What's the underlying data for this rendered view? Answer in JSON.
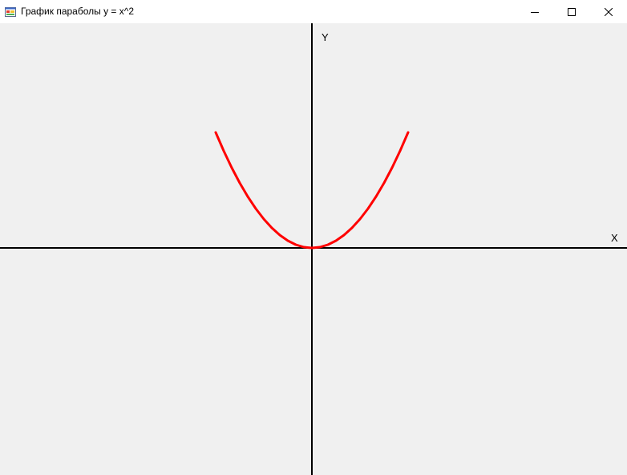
{
  "window": {
    "title": "График параболы y = x^2",
    "icon": "app-icon",
    "controls": {
      "minimize_icon": "minimize-icon",
      "maximize_icon": "maximize-icon",
      "close_icon": "close-icon"
    }
  },
  "plot": {
    "x_axis_label": "X",
    "y_axis_label": "Y",
    "curve_color": "#ff0000",
    "axis_color": "#000000",
    "background_color": "#f0f0f0"
  },
  "chart_data": {
    "type": "line",
    "title": "",
    "xlabel": "X",
    "ylabel": "Y",
    "grid": false,
    "series": [
      {
        "x": [
          -12,
          -11,
          -10,
          -9,
          -8,
          -7,
          -6,
          -5,
          -4,
          -3,
          -2,
          -1,
          0,
          1,
          2,
          3,
          4,
          5,
          6,
          7,
          8,
          9,
          10,
          11,
          12
        ],
        "y": [
          144,
          121,
          100,
          81,
          64,
          49,
          36,
          25,
          16,
          9,
          4,
          1,
          0,
          1,
          4,
          9,
          16,
          25,
          36,
          49,
          64,
          81,
          100,
          121,
          144
        ]
      }
    ]
  }
}
